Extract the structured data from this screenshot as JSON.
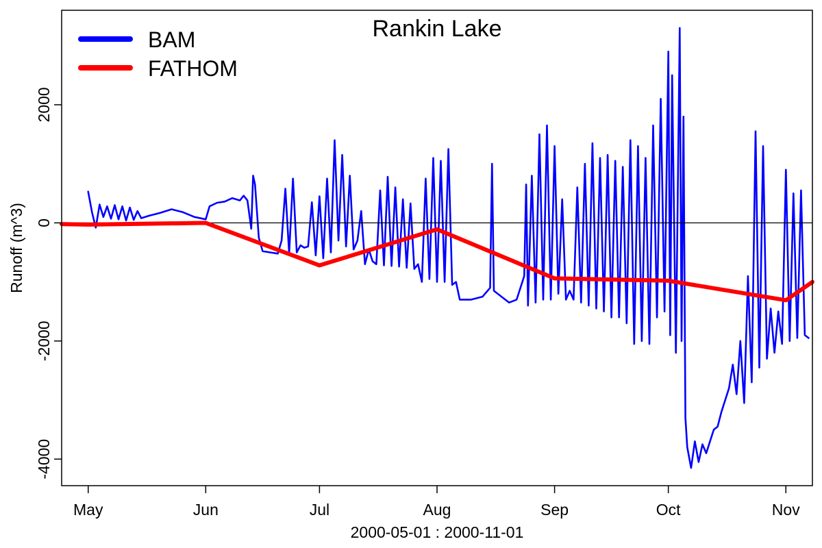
{
  "chart_data": {
    "type": "line",
    "title": "Rankin Lake",
    "xlabel": "2000-05-01 : 2000-11-01",
    "ylabel": "Runoff (m^3)",
    "x_ticks": [
      {
        "date": "2000-05-01",
        "label": "May"
      },
      {
        "date": "2000-06-01",
        "label": "Jun"
      },
      {
        "date": "2000-07-01",
        "label": "Jul"
      },
      {
        "date": "2000-08-01",
        "label": "Aug"
      },
      {
        "date": "2000-09-01",
        "label": "Sep"
      },
      {
        "date": "2000-10-01",
        "label": "Oct"
      },
      {
        "date": "2000-11-01",
        "label": "Nov"
      }
    ],
    "x_range": [
      "2000-04-24",
      "2000-11-08"
    ],
    "y_ticks": [
      {
        "value": 2000,
        "label": "2000"
      },
      {
        "value": 0,
        "label": "0"
      },
      {
        "value": -2000,
        "label": "-2000"
      },
      {
        "value": -4000,
        "label": "-4000"
      }
    ],
    "ylim": [
      -4450,
      3600
    ],
    "zero_line": 0,
    "legend_position": "top-left",
    "series": [
      {
        "name": "BAM",
        "color": "#0000ff",
        "points": [
          [
            "2000-05-01",
            530
          ],
          [
            "2000-05-02",
            180
          ],
          [
            "2000-05-03",
            -80
          ],
          [
            "2000-05-04",
            310
          ],
          [
            "2000-05-05",
            100
          ],
          [
            "2000-05-06",
            280
          ],
          [
            "2000-05-07",
            70
          ],
          [
            "2000-05-08",
            300
          ],
          [
            "2000-05-09",
            60
          ],
          [
            "2000-05-10",
            280
          ],
          [
            "2000-05-11",
            40
          ],
          [
            "2000-05-12",
            260
          ],
          [
            "2000-05-13",
            50
          ],
          [
            "2000-05-14",
            200
          ],
          [
            "2000-05-15",
            80
          ],
          [
            "2000-05-17",
            120
          ],
          [
            "2000-05-20",
            170
          ],
          [
            "2000-05-23",
            230
          ],
          [
            "2000-05-26",
            180
          ],
          [
            "2000-05-29",
            100
          ],
          [
            "2000-06-01",
            60
          ],
          [
            "2000-06-02",
            280
          ],
          [
            "2000-06-04",
            340
          ],
          [
            "2000-06-06",
            360
          ],
          [
            "2000-06-08",
            420
          ],
          [
            "2000-06-10",
            380
          ],
          [
            "2000-06-11",
            460
          ],
          [
            "2000-06-12",
            380
          ],
          [
            "2000-06-13",
            -100
          ],
          [
            "2000-06-13T12",
            800
          ],
          [
            "2000-06-14",
            650
          ],
          [
            "2000-06-15",
            -250
          ],
          [
            "2000-06-16",
            -480
          ],
          [
            "2000-06-18",
            -500
          ],
          [
            "2000-06-20",
            -520
          ],
          [
            "2000-06-21",
            -300
          ],
          [
            "2000-06-22",
            580
          ],
          [
            "2000-06-23",
            -520
          ],
          [
            "2000-06-24",
            750
          ],
          [
            "2000-06-25",
            -500
          ],
          [
            "2000-06-26",
            -380
          ],
          [
            "2000-06-27",
            -420
          ],
          [
            "2000-06-28",
            -400
          ],
          [
            "2000-06-29",
            350
          ],
          [
            "2000-06-30",
            -550
          ],
          [
            "2000-07-01",
            450
          ],
          [
            "2000-07-02",
            -600
          ],
          [
            "2000-07-03",
            750
          ],
          [
            "2000-07-04",
            -500
          ],
          [
            "2000-07-05",
            1400
          ],
          [
            "2000-07-06",
            -300
          ],
          [
            "2000-07-07",
            1150
          ],
          [
            "2000-07-08",
            -400
          ],
          [
            "2000-07-09",
            800
          ],
          [
            "2000-07-10",
            -450
          ],
          [
            "2000-07-11",
            -300
          ],
          [
            "2000-07-12",
            200
          ],
          [
            "2000-07-13",
            -700
          ],
          [
            "2000-07-14",
            -450
          ],
          [
            "2000-07-15",
            -650
          ],
          [
            "2000-07-16",
            -700
          ],
          [
            "2000-07-17",
            550
          ],
          [
            "2000-07-18",
            -720
          ],
          [
            "2000-07-19",
            780
          ],
          [
            "2000-07-20",
            -730
          ],
          [
            "2000-07-21",
            600
          ],
          [
            "2000-07-22",
            -740
          ],
          [
            "2000-07-23",
            400
          ],
          [
            "2000-07-24",
            -760
          ],
          [
            "2000-07-25",
            330
          ],
          [
            "2000-07-26",
            -780
          ],
          [
            "2000-07-27",
            -700
          ],
          [
            "2000-07-28",
            -1000
          ],
          [
            "2000-07-29",
            750
          ],
          [
            "2000-07-30",
            -950
          ],
          [
            "2000-07-31",
            1100
          ],
          [
            "2000-08-01",
            -1000
          ],
          [
            "2000-08-02",
            1050
          ],
          [
            "2000-08-03",
            -1000
          ],
          [
            "2000-08-04",
            1250
          ],
          [
            "2000-08-05",
            -1050
          ],
          [
            "2000-08-06",
            -1000
          ],
          [
            "2000-08-07",
            -1300
          ],
          [
            "2000-08-10",
            -1300
          ],
          [
            "2000-08-13",
            -1250
          ],
          [
            "2000-08-15",
            -1100
          ],
          [
            "2000-08-15T12",
            1000
          ],
          [
            "2000-08-16",
            -1150
          ],
          [
            "2000-08-18",
            -1250
          ],
          [
            "2000-08-20",
            -1350
          ],
          [
            "2000-08-22",
            -1300
          ],
          [
            "2000-08-24",
            -900
          ],
          [
            "2000-08-24T12",
            650
          ],
          [
            "2000-08-25",
            -1400
          ],
          [
            "2000-08-26",
            800
          ],
          [
            "2000-08-27",
            -1350
          ],
          [
            "2000-08-28",
            1500
          ],
          [
            "2000-08-29",
            -1300
          ],
          [
            "2000-08-30",
            1650
          ],
          [
            "2000-08-31",
            -1300
          ],
          [
            "2000-09-01",
            1300
          ],
          [
            "2000-09-02",
            -1200
          ],
          [
            "2000-09-03",
            400
          ],
          [
            "2000-09-04",
            -1300
          ],
          [
            "2000-09-05",
            -1150
          ],
          [
            "2000-09-06",
            -1300
          ],
          [
            "2000-09-07",
            600
          ],
          [
            "2000-09-08",
            -1350
          ],
          [
            "2000-09-09",
            1000
          ],
          [
            "2000-09-10",
            -1400
          ],
          [
            "2000-09-11",
            1350
          ],
          [
            "2000-09-12",
            -1450
          ],
          [
            "2000-09-13",
            1100
          ],
          [
            "2000-09-14",
            -1500
          ],
          [
            "2000-09-15",
            1150
          ],
          [
            "2000-09-16",
            -1600
          ],
          [
            "2000-09-17",
            1050
          ],
          [
            "2000-09-18",
            -1600
          ],
          [
            "2000-09-19",
            950
          ],
          [
            "2000-09-20",
            -1700
          ],
          [
            "2000-09-21",
            1400
          ],
          [
            "2000-09-22",
            -2050
          ],
          [
            "2000-09-23",
            1300
          ],
          [
            "2000-09-24",
            -2000
          ],
          [
            "2000-09-25",
            1100
          ],
          [
            "2000-09-26",
            -2050
          ],
          [
            "2000-09-27",
            1650
          ],
          [
            "2000-09-28",
            -1600
          ],
          [
            "2000-09-29",
            2100
          ],
          [
            "2000-09-30",
            -1500
          ],
          [
            "2000-10-01",
            2900
          ],
          [
            "2000-10-01T12",
            -1900
          ],
          [
            "2000-10-02",
            2500
          ],
          [
            "2000-10-03",
            -2200
          ],
          [
            "2000-10-04",
            3300
          ],
          [
            "2000-10-04T12",
            -2000
          ],
          [
            "2000-10-05",
            1800
          ],
          [
            "2000-10-05T12",
            -3300
          ],
          [
            "2000-10-06",
            -3800
          ],
          [
            "2000-10-07",
            -4150
          ],
          [
            "2000-10-08",
            -3700
          ],
          [
            "2000-10-09",
            -4050
          ],
          [
            "2000-10-10",
            -3750
          ],
          [
            "2000-10-11",
            -3900
          ],
          [
            "2000-10-12",
            -3700
          ],
          [
            "2000-10-13",
            -3500
          ],
          [
            "2000-10-14",
            -3450
          ],
          [
            "2000-10-15",
            -3200
          ],
          [
            "2000-10-16",
            -3000
          ],
          [
            "2000-10-17",
            -2800
          ],
          [
            "2000-10-18",
            -2400
          ],
          [
            "2000-10-19",
            -2900
          ],
          [
            "2000-10-20",
            -2000
          ],
          [
            "2000-10-21",
            -3050
          ],
          [
            "2000-10-22",
            -900
          ],
          [
            "2000-10-23",
            -2700
          ],
          [
            "2000-10-24",
            1550
          ],
          [
            "2000-10-25",
            -2450
          ],
          [
            "2000-10-26",
            1300
          ],
          [
            "2000-10-27",
            -2300
          ],
          [
            "2000-10-28",
            -1450
          ],
          [
            "2000-10-29",
            -2200
          ],
          [
            "2000-10-30",
            -1500
          ],
          [
            "2000-10-31",
            -2050
          ],
          [
            "2000-11-01",
            900
          ],
          [
            "2000-11-02",
            -2000
          ],
          [
            "2000-11-03",
            500
          ],
          [
            "2000-11-04",
            -1950
          ],
          [
            "2000-11-05",
            550
          ],
          [
            "2000-11-06",
            -1900
          ],
          [
            "2000-11-07",
            -1950
          ]
        ]
      },
      {
        "name": "FATHOM",
        "color": "#ff0000",
        "points": [
          [
            "2000-04-24",
            -20
          ],
          [
            "2000-05-01",
            -30
          ],
          [
            "2000-06-01",
            0
          ],
          [
            "2000-07-01",
            -720
          ],
          [
            "2000-08-01",
            -110
          ],
          [
            "2000-09-01",
            -940
          ],
          [
            "2000-10-01",
            -980
          ],
          [
            "2000-11-01",
            -1310
          ],
          [
            "2000-11-08",
            -1000
          ]
        ]
      }
    ]
  }
}
